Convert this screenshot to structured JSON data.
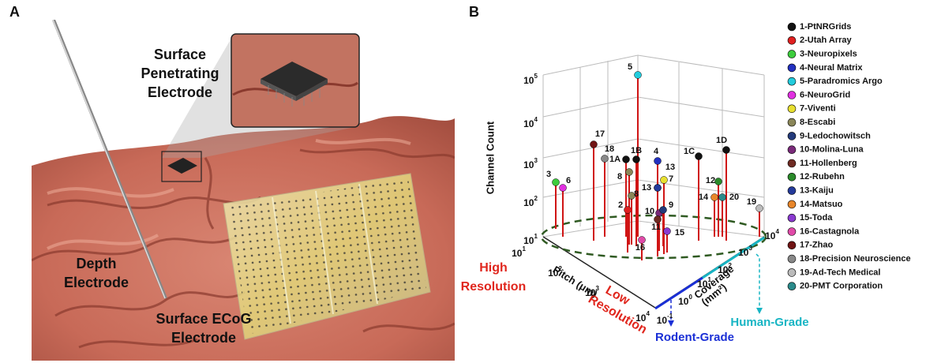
{
  "panel_a": {
    "letter": "A",
    "penetrating_label": [
      "Surface",
      "Penetrating",
      "Electrode"
    ],
    "depth_label": [
      "Depth",
      "Electrode"
    ],
    "ecog_label": [
      "Surface ECoG",
      "Electrode"
    ]
  },
  "panel_b": {
    "letter": "B",
    "z_axis": {
      "title": "Channel Count",
      "ticks": [
        {
          "base": "10",
          "exp": "1"
        },
        {
          "base": "10",
          "exp": "2"
        },
        {
          "base": "10",
          "exp": "3"
        },
        {
          "base": "10",
          "exp": "4"
        },
        {
          "base": "10",
          "exp": "5"
        }
      ]
    },
    "pitch_axis": {
      "title": "Pitch (μm)",
      "ticks": [
        {
          "base": "10",
          "exp": "1"
        },
        {
          "base": "10",
          "exp": "2"
        },
        {
          "base": "10",
          "exp": "3"
        },
        {
          "base": "10",
          "exp": "4"
        }
      ]
    },
    "coverage_axis": {
      "title": [
        "Coverage",
        "(mm²)"
      ],
      "ticks": [
        {
          "base": "10",
          "exp": "-1"
        },
        {
          "base": "10",
          "exp": "0"
        },
        {
          "base": "10",
          "exp": "1"
        },
        {
          "base": "10",
          "exp": "2"
        },
        {
          "base": "10",
          "exp": "3"
        },
        {
          "base": "10",
          "exp": "4"
        }
      ]
    },
    "high_resolution": [
      "High",
      "Resolution"
    ],
    "low_resolution": [
      "Low",
      "Resolution"
    ],
    "rodent_grade": "Rodent-Grade",
    "human_grade": "Human-Grade",
    "point_labels": [
      "5",
      "17",
      "18",
      "1B",
      "1A",
      "8",
      "4",
      "13",
      "13",
      "7",
      "3",
      "6",
      "1C",
      "1D",
      "12",
      "14",
      "20",
      "19",
      "2",
      "8",
      "10",
      "9",
      "11",
      "16",
      "15"
    ],
    "legend": [
      "1-PtNRGrids",
      "2-Utah Array",
      "3-Neuropixels",
      "4-Neural Matrix",
      "5-Paradromics Argo",
      "6-NeuroGrid",
      "7-Viventi",
      "8-Escabi",
      "9-Ledochowitsch",
      "10-Molina-Luna",
      "11-Hollenberg",
      "12-Rubehn",
      "13-Kaiju",
      "14-Matsuo",
      "15-Toda",
      "16-Castagnola",
      "17-Zhao",
      "18-Precision Neuroscience",
      "19-Ad-Tech Medical",
      "20-PMT Corporation"
    ]
  }
}
